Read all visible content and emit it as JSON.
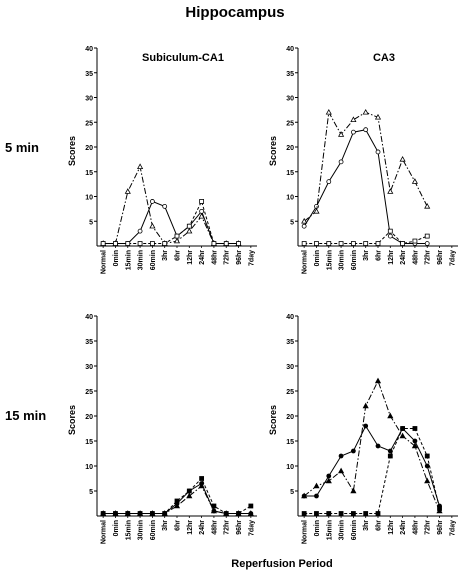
{
  "figure": {
    "title": "Hippocampus",
    "row_labels": [
      "5 min",
      "15 min"
    ],
    "xlabel": "Reperfusion Period"
  },
  "chart_data": [
    {
      "type": "line",
      "title": "Subiculum-CA1",
      "row": "5 min",
      "ylabel": "Scores",
      "ylim": [
        0,
        40
      ],
      "yticks": [
        5,
        10,
        15,
        20,
        25,
        30,
        35,
        40
      ],
      "categories": [
        "Normal",
        "0min",
        "15min",
        "30min",
        "60min",
        "3hr",
        "6hr",
        "12hr",
        "24hr",
        "48hr",
        "72hr",
        "96hr",
        "7day"
      ],
      "series": [
        {
          "marker": "circle",
          "style": "solid",
          "values": [
            0.5,
            0.5,
            0.5,
            3,
            9,
            8,
            2,
            4,
            7,
            0.5,
            0.5,
            0.5,
            null
          ]
        },
        {
          "marker": "triangle",
          "style": "dashdot",
          "values": [
            0.5,
            0.5,
            11,
            16,
            4,
            0.5,
            1,
            3,
            6,
            0.5,
            0.5,
            0.5,
            null
          ]
        },
        {
          "marker": "square",
          "style": "dashed",
          "values": [
            0.5,
            0.5,
            0.5,
            0.5,
            0.5,
            0.5,
            2,
            4,
            9,
            0.5,
            0.5,
            0.5,
            null
          ]
        }
      ]
    },
    {
      "type": "line",
      "title": "CA3",
      "row": "5 min",
      "ylabel": "Scores",
      "ylim": [
        0,
        40
      ],
      "yticks": [
        5,
        10,
        15,
        20,
        25,
        30,
        35,
        40
      ],
      "categories": [
        "Normal",
        "0min",
        "15min",
        "30min",
        "60min",
        "3hr",
        "6hr",
        "12hr",
        "24hr",
        "48hr",
        "72hr",
        "96hr",
        "7day"
      ],
      "series": [
        {
          "marker": "circle",
          "style": "solid",
          "values": [
            4,
            8,
            13,
            17,
            23,
            23.5,
            19,
            2,
            0.5,
            0.5,
            0.5,
            null,
            null
          ]
        },
        {
          "marker": "triangle",
          "style": "dashdot",
          "values": [
            5,
            7,
            27,
            22.5,
            25.5,
            27,
            26,
            11,
            17.5,
            13,
            8,
            null,
            null
          ]
        },
        {
          "marker": "square",
          "style": "dashed",
          "values": [
            0.5,
            0.5,
            0.5,
            0.5,
            0.5,
            0.5,
            0.5,
            3,
            0.5,
            1,
            2,
            null,
            null
          ]
        }
      ]
    },
    {
      "type": "line",
      "title": "",
      "row": "15 min",
      "ylabel": "Scores",
      "ylim": [
        0,
        40
      ],
      "yticks": [
        5,
        10,
        15,
        20,
        25,
        30,
        35,
        40
      ],
      "categories": [
        "Normal",
        "0min",
        "15min",
        "30min",
        "60min",
        "3hr",
        "6hr",
        "12hr",
        "24hr",
        "48hr",
        "72hr",
        "96hr",
        "7day"
      ],
      "series": [
        {
          "marker": "circle",
          "style": "solid",
          "values": [
            0.5,
            0.5,
            0.5,
            0.5,
            0.5,
            0.5,
            2.5,
            5,
            6.5,
            1,
            0.5,
            0.5,
            0.5
          ]
        },
        {
          "marker": "triangle",
          "style": "dashdot",
          "values": [
            0.5,
            0.5,
            0.5,
            0.5,
            0.5,
            0.5,
            2,
            4,
            6,
            1,
            0.5,
            0.5,
            0.5
          ]
        },
        {
          "marker": "square",
          "style": "dashed",
          "values": [
            0.5,
            0.5,
            0.5,
            0.5,
            0.5,
            0.5,
            3,
            5,
            7.5,
            2,
            0.5,
            0.5,
            2
          ]
        }
      ]
    },
    {
      "type": "line",
      "title": "",
      "row": "15 min",
      "ylabel": "Scores",
      "ylim": [
        0,
        40
      ],
      "yticks": [
        5,
        10,
        15,
        20,
        25,
        30,
        35,
        40
      ],
      "categories": [
        "Normal",
        "0min",
        "15min",
        "30min",
        "60min",
        "3hr",
        "6hr",
        "12hr",
        "24hr",
        "48hr",
        "72hr",
        "96hr",
        "7day"
      ],
      "series": [
        {
          "marker": "circle",
          "style": "solid",
          "values": [
            4,
            4,
            8,
            12,
            13,
            18,
            14,
            13,
            17.5,
            15,
            10,
            2,
            null
          ]
        },
        {
          "marker": "triangle",
          "style": "dashdot",
          "values": [
            4,
            6,
            7,
            9,
            5,
            22,
            27,
            20,
            16,
            14,
            7,
            1,
            null
          ]
        },
        {
          "marker": "square",
          "style": "dashed",
          "values": [
            0.5,
            0.5,
            0.5,
            0.5,
            0.5,
            0.5,
            0.5,
            12,
            17.5,
            17.5,
            12,
            1.5,
            null
          ]
        }
      ]
    }
  ]
}
